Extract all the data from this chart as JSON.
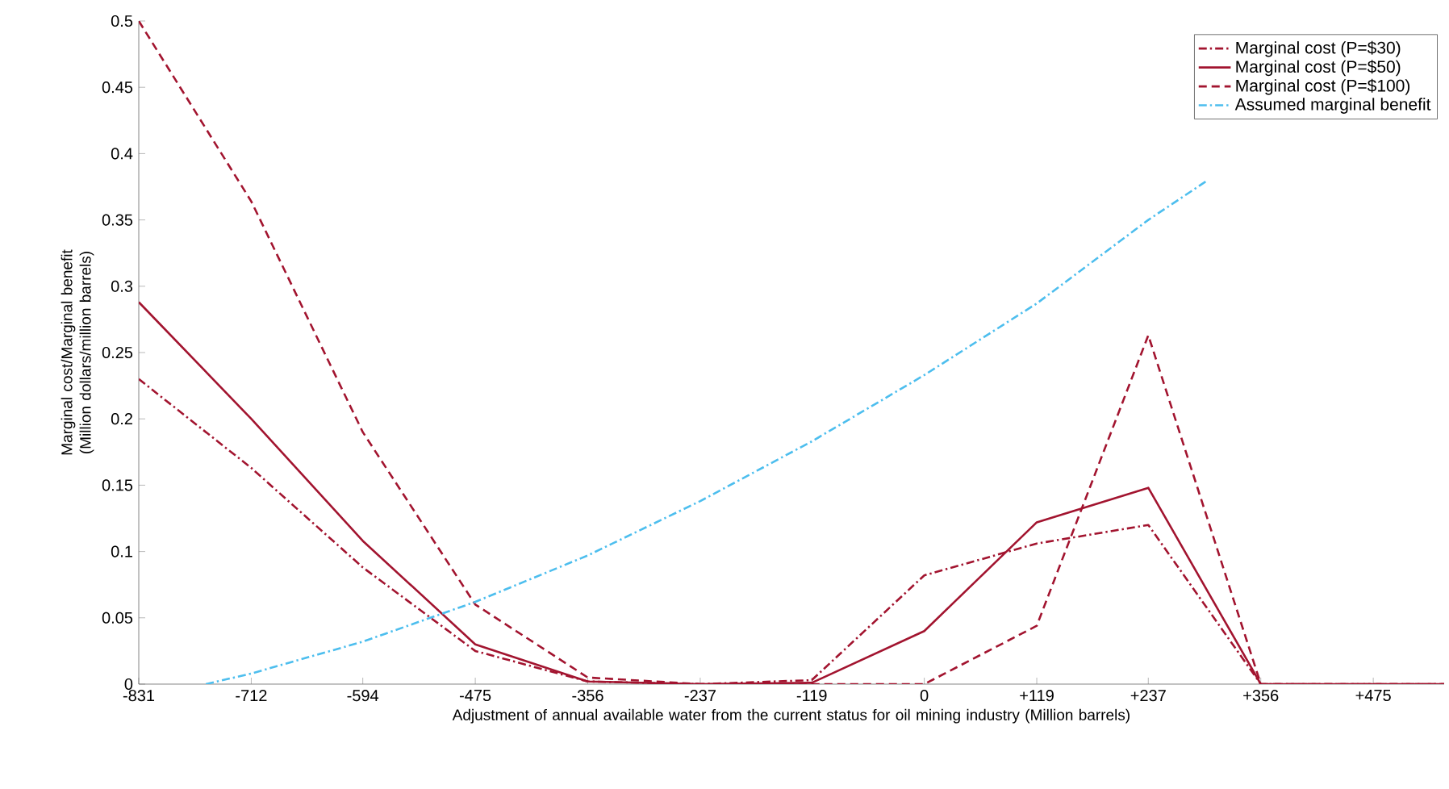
{
  "chart_data": {
    "type": "line",
    "xlabel": "Adjustment of annual available water from the current status for oil mining industry (Million barrels)",
    "ylabel": "Marginal cost/Marginal benefit (Million dollars/million barrels)",
    "x": [
      -831,
      -712,
      -594,
      -475,
      -356,
      -237,
      -119,
      0,
      119,
      237,
      356,
      475,
      550
    ],
    "series": [
      {
        "name": "Marginal cost (P=$30)",
        "color": "#a2142f",
        "line_style": "dashdot",
        "values": [
          0.23,
          0.163,
          0.088,
          0.025,
          0.002,
          0,
          0.003,
          0.082,
          0.106,
          0.12,
          0,
          0,
          0
        ]
      },
      {
        "name": "Marginal cost (P=$50)",
        "color": "#a2142f",
        "line_style": "solid",
        "values": [
          0.288,
          0.2,
          0.108,
          0.03,
          0.002,
          0,
          0.001,
          0.04,
          0.122,
          0.148,
          0,
          0,
          0
        ]
      },
      {
        "name": "Marginal cost (P=$100)",
        "color": "#a2142f",
        "line_style": "dashed",
        "values": [
          0.5,
          0.364,
          0.19,
          0.06,
          0.005,
          0,
          0,
          0,
          0.044,
          0.263,
          0,
          0,
          0
        ]
      },
      {
        "name": "Assumed marginal benefit",
        "color": "#4dbeee",
        "line_style": "dashdot",
        "x": [
          -760,
          -712,
          -594,
          -475,
          -356,
          -237,
          -119,
          0,
          119,
          237,
          300
        ],
        "values": [
          0,
          0.008,
          0.032,
          0.062,
          0.097,
          0.138,
          0.183,
          0.233,
          0.287,
          0.35,
          0.38
        ]
      }
    ],
    "xlim": [
      -831,
      550
    ],
    "ylim": [
      0,
      0.5
    ],
    "xticks": [
      -831,
      -712,
      -594,
      -475,
      -356,
      -237,
      -119,
      0,
      {
        "value": 119,
        "label": "+119"
      },
      {
        "value": 237,
        "label": "+237"
      },
      {
        "value": 356,
        "label": "+356"
      },
      {
        "value": 475,
        "label": "+475"
      }
    ],
    "yticks": [
      0,
      0.05,
      0.1,
      0.15,
      0.2,
      0.25,
      0.3,
      0.35,
      0.4,
      0.45,
      0.5
    ],
    "grid": false,
    "legend": "top right",
    "marker": "none"
  }
}
